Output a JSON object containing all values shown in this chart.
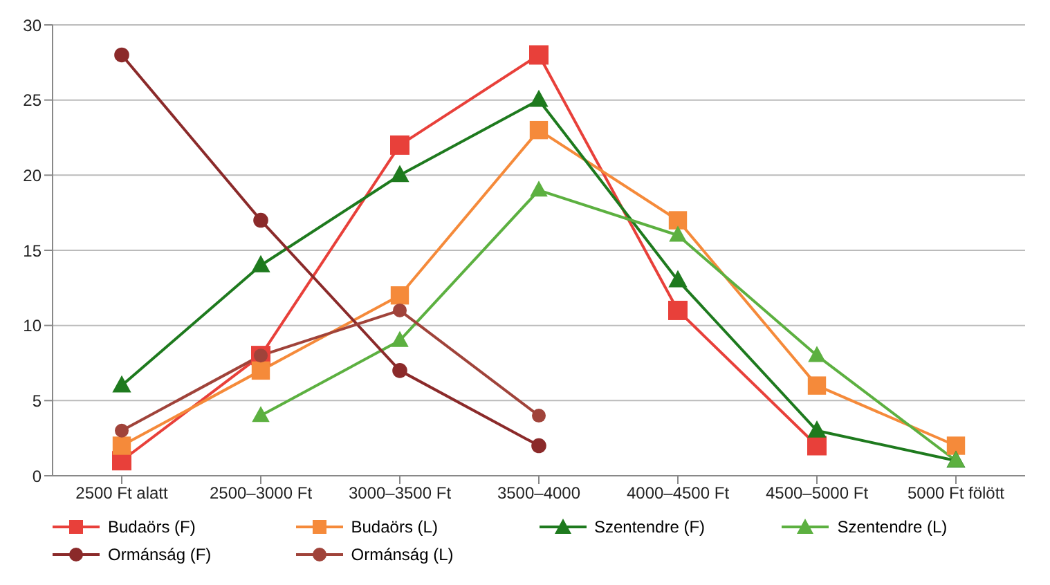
{
  "chart_data": {
    "type": "line",
    "categories": [
      "2500 Ft alatt",
      "2500–3000 Ft",
      "3000–3500 Ft",
      "3500–4000",
      "4000–4500 Ft",
      "4500–5000 Ft",
      "5000 Ft fölött"
    ],
    "series": [
      {
        "name": "Budaörs (F)",
        "color": "#e8403a",
        "marker": "square",
        "values": [
          1,
          8,
          22,
          28,
          11,
          2,
          null
        ]
      },
      {
        "name": "Budaörs (L)",
        "color": "#f58a3a",
        "marker": "square",
        "values": [
          2,
          7,
          12,
          23,
          17,
          6,
          2
        ]
      },
      {
        "name": "Szentendre (F)",
        "color": "#1e7a1e",
        "marker": "triangle",
        "values": [
          6,
          14,
          20,
          25,
          13,
          3,
          1
        ]
      },
      {
        "name": "Szentendre (L)",
        "color": "#5cb040",
        "marker": "triangle",
        "values": [
          null,
          4,
          9,
          19,
          16,
          8,
          1
        ]
      },
      {
        "name": "Ormánság (F)",
        "color": "#8b2a2a",
        "marker": "circle",
        "values": [
          28,
          17,
          7,
          2,
          null,
          null,
          null
        ]
      },
      {
        "name": "Ormánság (L)",
        "color": "#a0433a",
        "marker": "circle",
        "values": [
          3,
          8,
          11,
          4,
          null,
          null,
          null
        ]
      }
    ],
    "ylim": [
      0,
      30
    ],
    "yticks": [
      0,
      5,
      10,
      15,
      20,
      25,
      30
    ],
    "grid": "y",
    "legend": "bottom"
  }
}
